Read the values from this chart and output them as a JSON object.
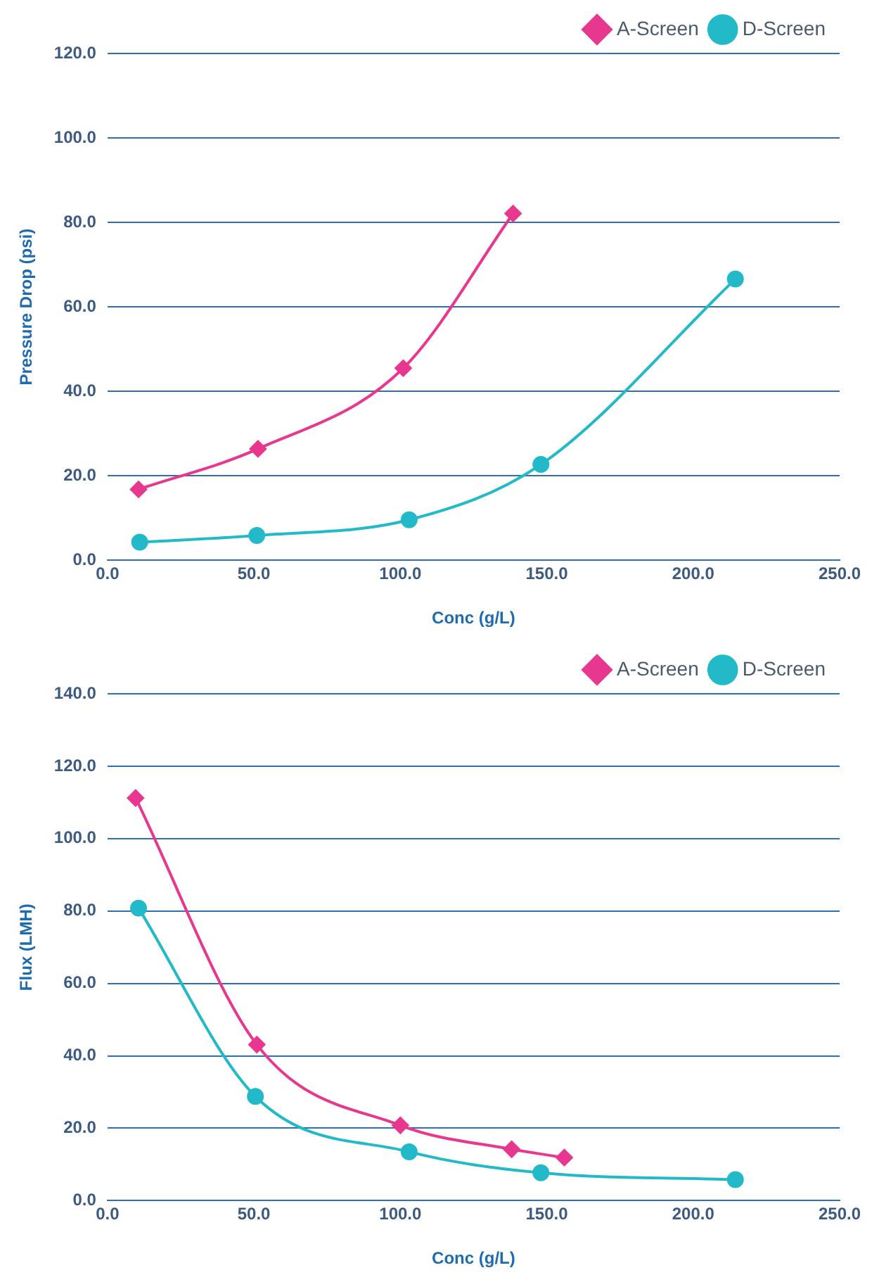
{
  "chart_data": [
    {
      "type": "line",
      "xlabel": "Conc (g/L)",
      "ylabel": "Pressure Drop (psi)",
      "xlim": [
        0,
        250
      ],
      "ylim": [
        0,
        120
      ],
      "xticks": [
        {
          "value": 0,
          "label": "0.0"
        },
        {
          "value": 50,
          "label": "50.0"
        },
        {
          "value": 100,
          "label": "100.0"
        },
        {
          "value": 150,
          "label": "150.0"
        },
        {
          "value": 200,
          "label": "200.0"
        },
        {
          "value": 250,
          "label": "250.0"
        }
      ],
      "yticks": [
        {
          "value": 0,
          "label": "0.0"
        },
        {
          "value": 20,
          "label": "20.0"
        },
        {
          "value": 40,
          "label": "40.0"
        },
        {
          "value": 60,
          "label": "60.0"
        },
        {
          "value": 80,
          "label": "80.0"
        },
        {
          "value": 100,
          "label": "100.0"
        },
        {
          "value": 120,
          "label": "120.0"
        }
      ],
      "grid": "y",
      "legend": "top right",
      "line_style": "solid",
      "series": [
        {
          "name": "A-Screen",
          "color": "#e8378f",
          "marker": "diamond",
          "x": [
            10.6,
            51.4,
            101,
            138.5
          ],
          "values": [
            16.8,
            26.4,
            45.5,
            82.1
          ]
        },
        {
          "name": "D-Screen",
          "color": "#22b9c9",
          "marker": "circle",
          "x": [
            11,
            51,
            103,
            148,
            214.4
          ],
          "values": [
            4.3,
            5.9,
            9.6,
            22.7,
            66.6
          ]
        }
      ]
    },
    {
      "type": "line",
      "xlabel": "Conc (g/L)",
      "ylabel": "Flux (LMH)",
      "xlim": [
        0,
        250
      ],
      "ylim": [
        0,
        140
      ],
      "xticks": [
        {
          "value": 0,
          "label": "0.0"
        },
        {
          "value": 50,
          "label": "50.0"
        },
        {
          "value": 100,
          "label": "100.0"
        },
        {
          "value": 150,
          "label": "150.0"
        },
        {
          "value": 200,
          "label": "200.0"
        },
        {
          "value": 250,
          "label": "250.0"
        }
      ],
      "yticks": [
        {
          "value": 0,
          "label": "0.0"
        },
        {
          "value": 20,
          "label": "20.0"
        },
        {
          "value": 40,
          "label": "40.0"
        },
        {
          "value": 60,
          "label": "60.0"
        },
        {
          "value": 80,
          "label": "80.0"
        },
        {
          "value": 100,
          "label": "100.0"
        },
        {
          "value": 120,
          "label": "120.0"
        },
        {
          "value": 140,
          "label": "140.0"
        }
      ],
      "grid": "y",
      "legend": "top right",
      "line_style": "solid",
      "series": [
        {
          "name": "A-Screen",
          "color": "#e8378f",
          "marker": "diamond",
          "x": [
            9.6,
            51,
            100,
            138,
            156
          ],
          "values": [
            111.2,
            43.1,
            20.8,
            14.2,
            11.9
          ]
        },
        {
          "name": "D-Screen",
          "color": "#22b9c9",
          "marker": "circle",
          "x": [
            10.6,
            50.5,
            103,
            148,
            214.4
          ],
          "values": [
            80.8,
            28.8,
            13.5,
            7.7,
            5.8
          ]
        }
      ]
    }
  ]
}
